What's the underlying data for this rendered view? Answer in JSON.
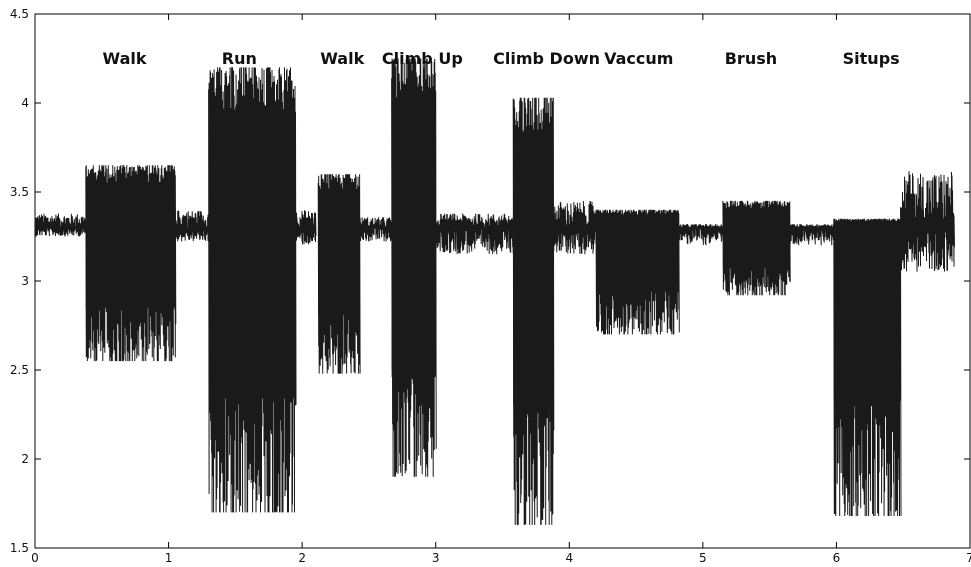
{
  "chart_data": {
    "type": "line",
    "title": "",
    "xlabel": "",
    "ylabel": "",
    "xlim": [
      0,
      7
    ],
    "ylim": [
      1.5,
      4.5
    ],
    "xticks": [
      0,
      1,
      2,
      3,
      4,
      5,
      6,
      7
    ],
    "yticks": [
      1.5,
      2,
      2.5,
      3,
      3.5,
      4,
      4.5
    ],
    "xtick_labels": [
      "0",
      "1",
      "2",
      "3",
      "4",
      "5",
      "6",
      "7"
    ],
    "ytick_labels": [
      "1.5",
      "2",
      "2.5",
      "3",
      "3.5",
      "4",
      "4.5"
    ],
    "grid": false,
    "baseline": 3.3,
    "line_color": "#1a1a1a",
    "segments": [
      {
        "label": "",
        "x_start": 0.0,
        "x_end": 0.38,
        "y_min": 3.25,
        "y_max": 3.38
      },
      {
        "label": "Walk",
        "label_x": 0.67,
        "x_start": 0.38,
        "x_end": 1.05,
        "y_min": 2.55,
        "y_max": 3.65
      },
      {
        "label": "",
        "x_start": 1.05,
        "x_end": 1.3,
        "y_min": 3.22,
        "y_max": 3.4
      },
      {
        "label": "Run",
        "label_x": 1.53,
        "x_start": 1.3,
        "x_end": 1.95,
        "y_min": 1.7,
        "y_max": 4.2
      },
      {
        "label": "",
        "x_start": 1.95,
        "x_end": 2.1,
        "y_min": 3.2,
        "y_max": 3.4
      },
      {
        "label": "Walk",
        "label_x": 2.3,
        "x_start": 2.12,
        "x_end": 2.43,
        "y_min": 2.48,
        "y_max": 3.6
      },
      {
        "label": "",
        "x_start": 2.43,
        "x_end": 2.67,
        "y_min": 3.22,
        "y_max": 3.36
      },
      {
        "label": "Climb Up",
        "label_x": 2.9,
        "x_start": 2.67,
        "x_end": 3.0,
        "y_min": 1.9,
        "y_max": 4.25
      },
      {
        "label": "",
        "x_start": 3.0,
        "x_end": 3.58,
        "y_min": 3.15,
        "y_max": 3.38
      },
      {
        "label": "Climb Down",
        "label_x": 3.83,
        "x_start": 3.58,
        "x_end": 3.88,
        "y_min": 1.63,
        "y_max": 4.03
      },
      {
        "label": "",
        "x_start": 3.88,
        "x_end": 4.2,
        "y_min": 3.15,
        "y_max": 3.45
      },
      {
        "label": "Vaccum",
        "label_x": 4.52,
        "x_start": 4.2,
        "x_end": 4.82,
        "y_min": 2.7,
        "y_max": 3.4
      },
      {
        "label": "",
        "x_start": 4.82,
        "x_end": 5.15,
        "y_min": 3.2,
        "y_max": 3.32
      },
      {
        "label": "Brush",
        "label_x": 5.36,
        "x_start": 5.15,
        "x_end": 5.65,
        "y_min": 2.92,
        "y_max": 3.45
      },
      {
        "label": "",
        "x_start": 5.65,
        "x_end": 5.98,
        "y_min": 3.2,
        "y_max": 3.32
      },
      {
        "label": "Situps",
        "label_x": 6.26,
        "x_start": 5.98,
        "x_end": 6.48,
        "y_min": 1.68,
        "y_max": 3.35
      },
      {
        "label": "",
        "x_start": 6.48,
        "x_end": 6.88,
        "y_min": 3.05,
        "y_max": 3.62
      }
    ]
  }
}
